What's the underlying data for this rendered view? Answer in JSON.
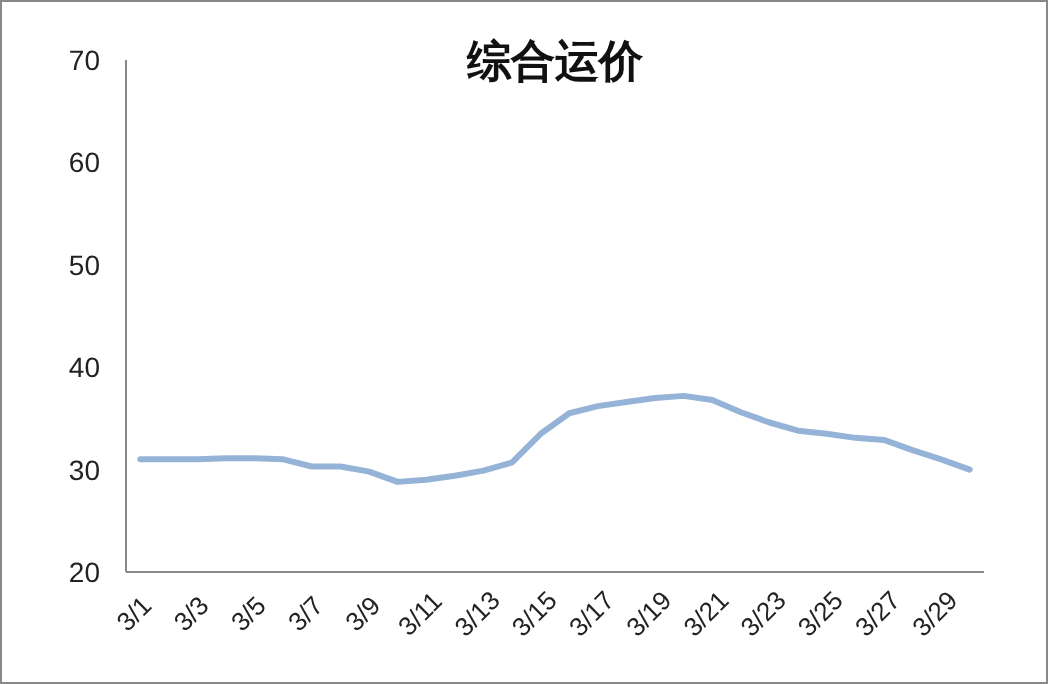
{
  "chart_data": {
    "type": "line",
    "title": "综合运价",
    "categories": [
      "3/1",
      null,
      "3/3",
      null,
      "3/5",
      null,
      "3/7",
      null,
      "3/9",
      null,
      "3/11",
      null,
      "3/13",
      null,
      "3/15",
      null,
      "3/17",
      null,
      "3/19",
      null,
      "3/21",
      null,
      "3/23",
      null,
      "3/25",
      null,
      "3/27",
      null,
      "3/29",
      null
    ],
    "series": [
      {
        "color": "#95b3d7",
        "values": [
          31,
          31,
          31,
          31.1,
          31.1,
          31,
          30.3,
          30.3,
          29.8,
          28.8,
          29,
          29.4,
          29.9,
          30.7,
          33.5,
          35.5,
          36.2,
          36.6,
          37,
          37.2,
          36.8,
          35.6,
          34.6,
          33.8,
          33.5,
          33.1,
          32.9,
          31.9,
          31,
          30
        ]
      }
    ],
    "ylim": [
      20,
      70
    ],
    "yticks": [
      20,
      30,
      40,
      50,
      60,
      70
    ],
    "grid": false,
    "marker": "none",
    "line_style": "solid"
  }
}
